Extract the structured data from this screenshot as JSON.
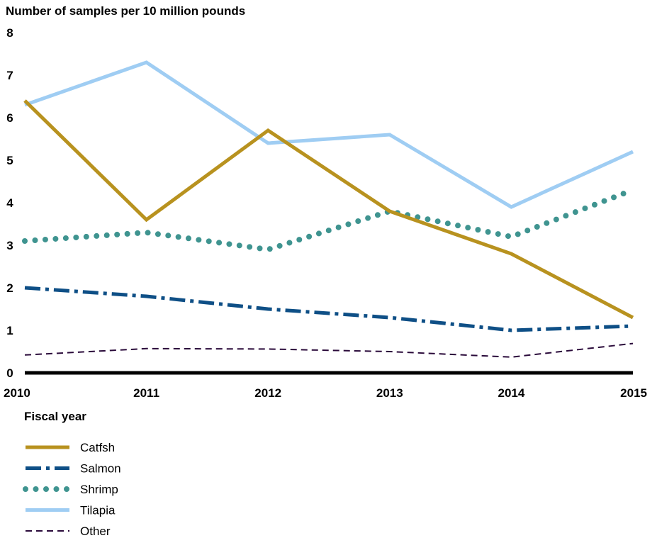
{
  "chart_data": {
    "type": "line",
    "ylabel": "Number of samples per 10 million pounds",
    "xlabel": "Fiscal year",
    "x": [
      "2010",
      "2011",
      "2012",
      "2013",
      "2014",
      "2015"
    ],
    "ylim": [
      0,
      8
    ],
    "yticks": [
      "0",
      "1",
      "2",
      "3",
      "4",
      "5",
      "6",
      "7",
      "8"
    ],
    "grid": false,
    "legend_position": "bottom-left",
    "series": [
      {
        "name": "Catfsh",
        "values": [
          6.4,
          3.6,
          5.7,
          3.8,
          2.8,
          1.3
        ],
        "color": "#b8921f",
        "style": "solid"
      },
      {
        "name": "Salmon",
        "values": [
          2.0,
          1.8,
          1.5,
          1.3,
          1.0,
          1.1
        ],
        "color": "#0e4f86",
        "style": "dash-dot"
      },
      {
        "name": "Shrimp",
        "values": [
          3.1,
          3.3,
          2.9,
          3.8,
          3.2,
          4.3
        ],
        "color": "#3f9490",
        "style": "dotted"
      },
      {
        "name": "Tilapia",
        "values": [
          6.3,
          7.3,
          5.4,
          5.6,
          3.9,
          5.2
        ],
        "color": "#9fcdf3",
        "style": "solid"
      },
      {
        "name": "Other",
        "values": [
          0.42,
          0.57,
          0.56,
          0.5,
          0.37,
          0.69
        ],
        "color": "#2a0a3a",
        "style": "dashed"
      }
    ]
  }
}
